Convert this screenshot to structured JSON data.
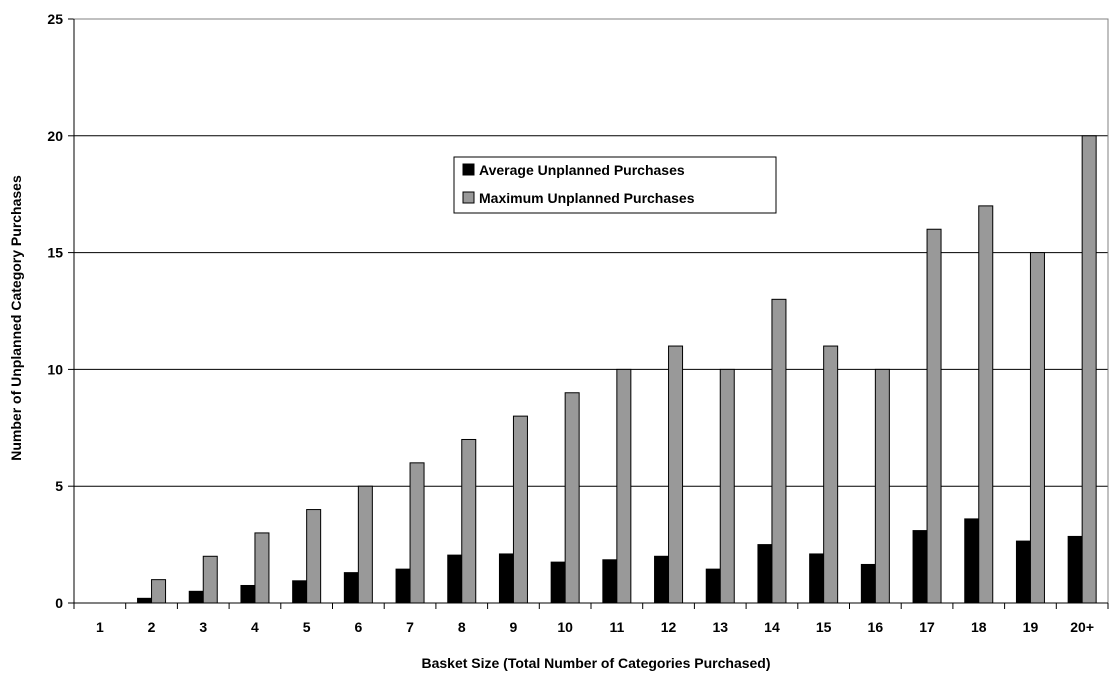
{
  "chart_data": {
    "type": "bar",
    "xlabel": "Basket Size (Total Number of Categories Purchased)",
    "ylabel": "Number of Unplanned Category Purchases",
    "ylim": [
      0,
      25
    ],
    "yticks": [
      0,
      5,
      10,
      15,
      20,
      25
    ],
    "grid": true,
    "legend_position": "center-top",
    "categories": [
      "1",
      "2",
      "3",
      "4",
      "5",
      "6",
      "7",
      "8",
      "9",
      "10",
      "11",
      "12",
      "13",
      "14",
      "15",
      "16",
      "17",
      "18",
      "19",
      "20+"
    ],
    "series": [
      {
        "name": "Average Unplanned Purchases",
        "color": "#000000",
        "values": [
          0,
          0.2,
          0.5,
          0.75,
          0.95,
          1.3,
          1.45,
          2.05,
          2.1,
          1.75,
          1.85,
          2.0,
          1.45,
          2.5,
          2.1,
          1.65,
          3.1,
          3.6,
          2.65,
          2.85
        ]
      },
      {
        "name": "Maximum Unplanned Purchases",
        "color": "#999999",
        "values": [
          0,
          1,
          2,
          3,
          4,
          5,
          6,
          7,
          8,
          9,
          10,
          11,
          10,
          13,
          11,
          10,
          16,
          17,
          15,
          20
        ]
      }
    ]
  }
}
